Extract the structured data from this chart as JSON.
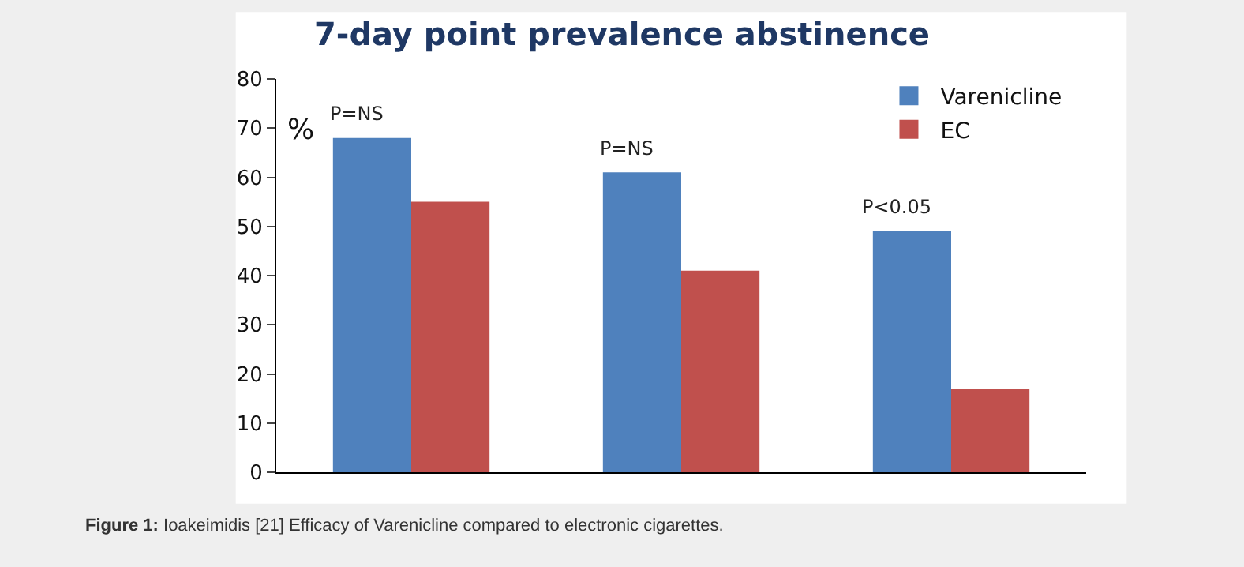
{
  "chart_data": {
    "type": "bar",
    "title": "7-day point prevalence abstinence",
    "ylabel": "%",
    "categories": [
      null,
      null,
      null
    ],
    "series": [
      {
        "name": "Varenicline",
        "color": "#4f81bd",
        "values": [
          68,
          61,
          49
        ]
      },
      {
        "name": "EC",
        "color": "#c0504d",
        "values": [
          55,
          41,
          17
        ]
      }
    ],
    "ylim": [
      0,
      80
    ],
    "yticks": [
      0,
      10,
      20,
      30,
      40,
      50,
      60,
      70,
      80
    ],
    "grid": false,
    "legend": "top right",
    "annotations": [
      "P=NS",
      "P=NS",
      "P<0.05",
      "Figure 1: Ioakeimidis [21] Efficacy of Varenicline compared to electronic cigarettes."
    ]
  }
}
